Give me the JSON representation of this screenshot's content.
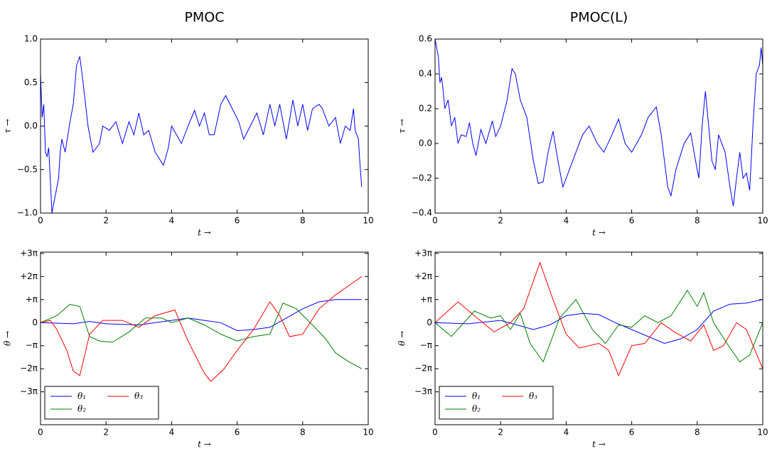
{
  "chart_data": [
    {
      "type": "line",
      "title": "PMOC",
      "xlabel": "t →",
      "ylabel": "τ →",
      "xlim": [
        0,
        10
      ],
      "ylim": [
        -1,
        1
      ],
      "xticks": [
        0,
        2,
        4,
        6,
        8,
        10
      ],
      "yticks": [
        {
          "value": -1,
          "label": "−1.0"
        },
        {
          "value": -0.5,
          "label": "−0.5"
        },
        {
          "value": 0,
          "label": "0.0"
        },
        0.5,
        {
          "value": 1,
          "label": "1.0"
        }
      ],
      "series": [
        {
          "color": "#0000ff",
          "x": [
            0,
            0.05,
            0.1,
            0.15,
            0.2,
            0.25,
            0.35,
            0.45,
            0.55,
            0.6,
            0.65,
            0.75,
            0.9,
            1.0,
            1.1,
            1.2,
            1.3,
            1.45,
            1.6,
            1.8,
            1.9,
            2.1,
            2.3,
            2.5,
            2.7,
            2.85,
            3.0,
            3.15,
            3.3,
            3.5,
            3.75,
            3.9,
            4.0,
            4.15,
            4.3,
            4.5,
            4.7,
            4.85,
            5.0,
            5.15,
            5.3,
            5.5,
            5.65,
            5.85,
            6.05,
            6.2,
            6.4,
            6.6,
            6.8,
            7.0,
            7.15,
            7.3,
            7.5,
            7.7,
            7.85,
            8.0,
            8.15,
            8.3,
            8.5,
            8.6,
            8.8,
            9.0,
            9.15,
            9.3,
            9.45,
            9.55,
            9.6,
            9.7,
            9.75,
            9.8
          ],
          "values": [
            0.6,
            0.1,
            0.25,
            -0.3,
            -0.35,
            -0.25,
            -1.0,
            -0.8,
            -0.6,
            -0.3,
            -0.15,
            -0.3,
            0.05,
            0.25,
            0.7,
            0.8,
            0.5,
            0,
            -0.3,
            -0.2,
            0,
            -0.05,
            0.05,
            -0.2,
            0.05,
            -0.1,
            0.15,
            -0.1,
            -0.05,
            -0.3,
            -0.45,
            -0.25,
            0,
            -0.1,
            -0.2,
            0,
            0.18,
            0,
            0.15,
            -0.1,
            -0.1,
            0.25,
            0.35,
            0.2,
            0.05,
            -0.15,
            0,
            0.15,
            -0.1,
            0.25,
            0,
            0.25,
            -0.15,
            0.3,
            0,
            0.25,
            -0.05,
            0.2,
            0.25,
            0.2,
            0,
            0.1,
            -0.2,
            0,
            -0.05,
            0.2,
            -0.05,
            -0.15,
            -0.45,
            -0.7
          ]
        }
      ]
    },
    {
      "type": "line",
      "title": "PMOC(L)",
      "xlabel": "t →",
      "ylabel": "τ →",
      "xlim": [
        0,
        10
      ],
      "ylim": [
        -0.4,
        0.6
      ],
      "xticks": [
        0,
        2,
        4,
        6,
        8,
        10
      ],
      "yticks": [
        {
          "value": -0.4,
          "label": "−0.4"
        },
        {
          "value": -0.2,
          "label": "−0.2"
        },
        {
          "value": 0,
          "label": "0.0"
        },
        0.2,
        0.4,
        0.6
      ],
      "series": [
        {
          "color": "#0000ff",
          "x": [
            0,
            0.05,
            0.1,
            0.15,
            0.2,
            0.25,
            0.3,
            0.4,
            0.5,
            0.6,
            0.7,
            0.8,
            0.95,
            1.05,
            1.15,
            1.25,
            1.4,
            1.55,
            1.75,
            1.85,
            2.0,
            2.2,
            2.35,
            2.45,
            2.6,
            2.8,
            3.0,
            3.15,
            3.3,
            3.45,
            3.6,
            3.75,
            3.9,
            4.1,
            4.3,
            4.5,
            4.7,
            4.95,
            5.15,
            5.4,
            5.6,
            5.8,
            6.0,
            6.3,
            6.5,
            6.75,
            6.9,
            7.1,
            7.2,
            7.35,
            7.6,
            7.8,
            7.95,
            8.05,
            8.15,
            8.25,
            8.35,
            8.45,
            8.55,
            8.65,
            8.75,
            8.85,
            9.0,
            9.1,
            9.2,
            9.3,
            9.4,
            9.5,
            9.6,
            9.7,
            9.8,
            9.9,
            9.95,
            10.0
          ],
          "values": [
            0.6,
            0.55,
            0.5,
            0.35,
            0.38,
            0.3,
            0.2,
            0.25,
            0.1,
            0.15,
            0,
            0.05,
            0.04,
            0.12,
            0,
            -0.07,
            0.08,
            0,
            0.13,
            0.04,
            0.1,
            0.25,
            0.43,
            0.4,
            0.25,
            0.15,
            -0.1,
            -0.23,
            -0.22,
            -0.05,
            0.07,
            -0.1,
            -0.25,
            -0.15,
            -0.05,
            0.05,
            0.1,
            0,
            -0.05,
            0.05,
            0.14,
            0,
            -0.05,
            0.05,
            0.15,
            0.21,
            0.05,
            -0.25,
            -0.3,
            -0.15,
            0,
            0.06,
            -0.1,
            -0.2,
            0.1,
            0.3,
            0.1,
            -0.1,
            -0.15,
            0.05,
            0,
            -0.05,
            -0.25,
            -0.36,
            -0.2,
            -0.05,
            -0.2,
            -0.17,
            -0.27,
            0.1,
            0.4,
            0.45,
            0.55,
            0.45
          ]
        }
      ]
    },
    {
      "type": "line",
      "xlabel": "t →",
      "ylabel": "θ →",
      "xlim": [
        0,
        10
      ],
      "ylim": [
        -13.9,
        9.6
      ],
      "xticks": [
        0,
        2,
        4,
        6,
        8,
        10
      ],
      "yticks": [
        {
          "value": -9.42,
          "label": "−3π"
        },
        {
          "value": -6.28,
          "label": "−2π"
        },
        {
          "value": -3.14,
          "label": "−π"
        },
        0,
        {
          "value": 3.14,
          "label": "+π"
        },
        {
          "value": 6.28,
          "label": "+2π"
        },
        {
          "value": 9.42,
          "label": "+3π"
        }
      ],
      "legend": "lower left",
      "series": [
        {
          "name": "θ₁",
          "color": "#0000ff",
          "x": [
            0,
            1,
            1.5,
            2,
            3,
            4,
            4.5,
            5,
            5.5,
            6,
            6.5,
            7,
            7.5,
            8,
            8.5,
            9,
            9.8
          ],
          "values": [
            0,
            -0.16,
            0.16,
            -0.16,
            -0.31,
            0.31,
            0.63,
            0.31,
            0,
            -1.1,
            -0.94,
            -0.63,
            0.63,
            1.88,
            2.83,
            3.14,
            3.14
          ]
        },
        {
          "name": "θ₂",
          "color": "#008000",
          "x": [
            0,
            0.5,
            0.9,
            1.2,
            1.5,
            1.8,
            2.2,
            2.7,
            3.2,
            3.7,
            4,
            4.5,
            5,
            5.5,
            6,
            6.5,
            7,
            7.4,
            7.8,
            8.3,
            8.7,
            9.0,
            9.4,
            9.8
          ],
          "values": [
            0,
            0.94,
            2.5,
            2.2,
            -1.9,
            -2.5,
            -2.67,
            -1.26,
            0.63,
            0.63,
            0,
            0.63,
            -0.31,
            -1.57,
            -2.5,
            -1.9,
            -1.57,
            2.67,
            1.9,
            -0.31,
            -2.2,
            -4.1,
            -5.3,
            -6.28
          ]
        },
        {
          "name": "θ₃",
          "color": "#ff0000",
          "x": [
            0,
            0.3,
            0.5,
            0.8,
            1.0,
            1.2,
            1.5,
            1.9,
            2.5,
            3,
            3.5,
            4.1,
            4.5,
            5,
            5.2,
            5.6,
            6,
            6.5,
            7,
            7.3,
            7.6,
            8,
            8.5,
            9,
            9.5,
            9.8
          ],
          "values": [
            0,
            0.31,
            -0.94,
            -3.77,
            -6.6,
            -7.2,
            -1.57,
            0.31,
            0.31,
            -0.63,
            0.94,
            1.73,
            -2.5,
            -6.9,
            -8.0,
            -6.3,
            -3.77,
            -0.94,
            2.83,
            0.94,
            -1.9,
            -1.57,
            1.88,
            3.77,
            5.34,
            6.28
          ]
        }
      ]
    },
    {
      "type": "line",
      "xlabel": "t →",
      "ylabel": "θ →",
      "xlim": [
        0,
        10
      ],
      "ylim": [
        -13.9,
        9.6
      ],
      "xticks": [
        0,
        2,
        4,
        6,
        8,
        10
      ],
      "yticks": [
        {
          "value": -9.42,
          "label": "−3π"
        },
        {
          "value": -6.28,
          "label": "−2π"
        },
        {
          "value": -3.14,
          "label": "−π"
        },
        0,
        {
          "value": 3.14,
          "label": "+π"
        },
        {
          "value": 6.28,
          "label": "+2π"
        },
        {
          "value": 9.42,
          "label": "+3π"
        }
      ],
      "legend": "lower left",
      "series": [
        {
          "name": "θ₁",
          "color": "#0000ff",
          "x": [
            0,
            1,
            2,
            3,
            3.5,
            4,
            4.5,
            5,
            5.5,
            6,
            7,
            7.5,
            8,
            8.5,
            9,
            9.5,
            10
          ],
          "values": [
            0,
            -0.16,
            0.31,
            -0.94,
            -0.31,
            0.94,
            1.26,
            1.1,
            0,
            -0.94,
            -2.83,
            -2.2,
            -0.94,
            1.57,
            2.51,
            2.67,
            3.14
          ]
        },
        {
          "name": "θ₂",
          "color": "#008000",
          "x": [
            0,
            0.5,
            1.2,
            1.7,
            2.0,
            2.3,
            2.6,
            2.9,
            3.3,
            3.8,
            4.3,
            4.8,
            5.2,
            5.6,
            6,
            6.4,
            6.8,
            7.2,
            7.7,
            8.0,
            8.2,
            8.5,
            9.0,
            9.3,
            9.6,
            10
          ],
          "values": [
            0,
            -1.88,
            1.57,
            0.63,
            0.94,
            -0.94,
            1.26,
            -2.83,
            -5.34,
            0.63,
            3.14,
            -0.94,
            -2.83,
            -0.31,
            -0.63,
            0.94,
            0,
            0.94,
            4.4,
            2.2,
            4.08,
            0,
            -3.46,
            -5.34,
            -4.4,
            0
          ]
        },
        {
          "name": "θ₃",
          "color": "#ff0000",
          "x": [
            0,
            0.7,
            1.2,
            1.8,
            2.3,
            2.7,
            3.2,
            3.6,
            4.0,
            4.4,
            5.0,
            5.3,
            5.6,
            6.0,
            6.4,
            6.9,
            7.3,
            7.8,
            8.2,
            8.5,
            8.8,
            9.2,
            9.5,
            10
          ],
          "values": [
            0,
            2.83,
            0.94,
            -1.26,
            0,
            1.88,
            8.17,
            3.14,
            -1.57,
            -3.46,
            -2.83,
            -3.77,
            -7.23,
            -3.14,
            -2.83,
            0,
            -1.26,
            -2.51,
            -0.31,
            -3.77,
            -3.14,
            0,
            -0.94,
            -6.28
          ]
        }
      ]
    }
  ]
}
